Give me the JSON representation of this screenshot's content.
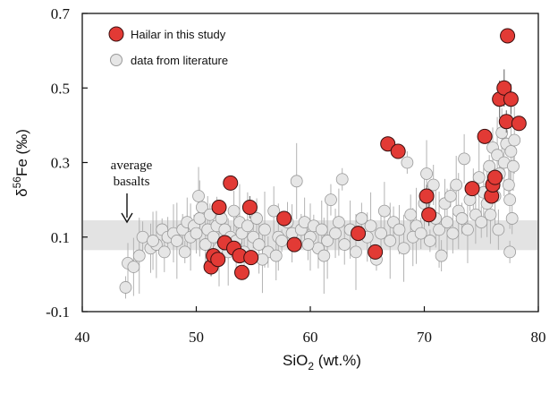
{
  "chart_data": {
    "type": "scatter",
    "title": "",
    "xlabel": {
      "main": "SiO",
      "sub": "2",
      "tail": " (wt.%)"
    },
    "ylabel": {
      "main": "δ",
      "sup": "56",
      "tail": "Fe (‰)"
    },
    "xlim": [
      40,
      80
    ],
    "ylim": [
      -0.1,
      0.7
    ],
    "xticks": [
      "40",
      "50",
      "60",
      "70",
      "80"
    ],
    "yticks": [
      "-0.1",
      "0.1",
      "0.3",
      "0.5",
      "0.7"
    ],
    "xtick_values": [
      40,
      50,
      60,
      70,
      80
    ],
    "ytick_values": [
      -0.1,
      0.1,
      0.3,
      0.5,
      0.7
    ],
    "grid": false,
    "legend_position": "top-left",
    "band": {
      "label_line1": "average",
      "label_line2": "basalts",
      "y_min": 0.065,
      "y_max": 0.145,
      "color": "#e3e3e3"
    },
    "colors": {
      "hailar_fill": "#e23a35",
      "hailar_stroke": "#3a1010",
      "literature_fill": "#e6e6e6",
      "literature_stroke": "#9a9a9a",
      "error_bar": "#b3b3b3",
      "hailar_error": "#777777"
    },
    "series": [
      {
        "name": "Hailar in this study",
        "points": [
          [
            51.3,
            0.02
          ],
          [
            51.5,
            0.05
          ],
          [
            51.9,
            0.04
          ],
          [
            52.0,
            0.18
          ],
          [
            52.5,
            0.085
          ],
          [
            53.0,
            0.245
          ],
          [
            53.3,
            0.07
          ],
          [
            53.8,
            0.05
          ],
          [
            54.0,
            0.005
          ],
          [
            54.7,
            0.18
          ],
          [
            54.8,
            0.045
          ],
          [
            57.7,
            0.15
          ],
          [
            58.6,
            0.08
          ],
          [
            64.2,
            0.11
          ],
          [
            65.7,
            0.06
          ],
          [
            66.8,
            0.35
          ],
          [
            67.7,
            0.33
          ],
          [
            70.2,
            0.21
          ],
          [
            70.4,
            0.16
          ],
          [
            74.2,
            0.23
          ],
          [
            75.3,
            0.37
          ],
          [
            75.9,
            0.21
          ],
          [
            76.0,
            0.24
          ],
          [
            76.2,
            0.26
          ],
          [
            76.6,
            0.47
          ],
          [
            77.0,
            0.5
          ],
          [
            77.2,
            0.41
          ],
          [
            77.3,
            0.64
          ],
          [
            77.6,
            0.47
          ],
          [
            78.3,
            0.405
          ]
        ],
        "errors": [
          0.025,
          0.02,
          0.02,
          0.02,
          0.02,
          0.02,
          0.02,
          0.02,
          0.02,
          0.03,
          0.02,
          0.02,
          0.02,
          0.02,
          0.02,
          0.02,
          0.02,
          0.03,
          0.03,
          0.02,
          0.02,
          0.02,
          0.02,
          0.02,
          0.05,
          0.05,
          0.03,
          0.02,
          0.04,
          0.02
        ]
      },
      {
        "name": "data from literature",
        "points": [
          [
            43.8,
            -0.035
          ],
          [
            44.0,
            0.03
          ],
          [
            44.5,
            0.02
          ],
          [
            45.0,
            0.05
          ],
          [
            45.3,
            0.1
          ],
          [
            46.0,
            0.07
          ],
          [
            46.5,
            0.08
          ],
          [
            47.0,
            0.12
          ],
          [
            47.5,
            0.1
          ],
          [
            48.0,
            0.11
          ],
          [
            48.3,
            0.09
          ],
          [
            48.8,
            0.12
          ],
          [
            49.2,
            0.14
          ],
          [
            49.5,
            0.1
          ],
          [
            49.8,
            0.13
          ],
          [
            50.0,
            0.11
          ],
          [
            50.2,
            0.21
          ],
          [
            50.3,
            0.15
          ],
          [
            50.5,
            0.18
          ],
          [
            50.8,
            0.08
          ],
          [
            51.0,
            0.12
          ],
          [
            51.2,
            0.16
          ],
          [
            51.5,
            0.1
          ],
          [
            51.8,
            0.13
          ],
          [
            52.0,
            0.07
          ],
          [
            52.2,
            0.15
          ],
          [
            52.5,
            0.12
          ],
          [
            52.8,
            0.06
          ],
          [
            53.0,
            0.1
          ],
          [
            53.3,
            0.17
          ],
          [
            53.5,
            0.09
          ],
          [
            53.8,
            0.14
          ],
          [
            54.0,
            0.11
          ],
          [
            54.2,
            0.06
          ],
          [
            54.5,
            0.13
          ],
          [
            55.0,
            0.1
          ],
          [
            55.3,
            0.15
          ],
          [
            55.5,
            0.08
          ],
          [
            56.0,
            0.12
          ],
          [
            56.3,
            0.06
          ],
          [
            56.8,
            0.17
          ],
          [
            57.2,
            0.1
          ],
          [
            57.5,
            0.09
          ],
          [
            58.0,
            0.14
          ],
          [
            58.4,
            0.11
          ],
          [
            58.8,
            0.25
          ],
          [
            59.2,
            0.12
          ],
          [
            59.5,
            0.14
          ],
          [
            60.0,
            0.1
          ],
          [
            60.3,
            0.13
          ],
          [
            60.7,
            0.07
          ],
          [
            61.0,
            0.12
          ],
          [
            61.5,
            0.09
          ],
          [
            61.8,
            0.2
          ],
          [
            62.2,
            0.11
          ],
          [
            62.5,
            0.14
          ],
          [
            62.8,
            0.255
          ],
          [
            63.0,
            0.08
          ],
          [
            63.5,
            0.12
          ],
          [
            64.0,
            0.06
          ],
          [
            64.5,
            0.15
          ],
          [
            65.0,
            0.1
          ],
          [
            65.3,
            0.13
          ],
          [
            65.8,
            0.04
          ],
          [
            66.2,
            0.11
          ],
          [
            66.5,
            0.17
          ],
          [
            67.0,
            0.09
          ],
          [
            67.3,
            0.14
          ],
          [
            67.8,
            0.12
          ],
          [
            68.2,
            0.07
          ],
          [
            68.5,
            0.3
          ],
          [
            68.8,
            0.16
          ],
          [
            69.0,
            0.1
          ],
          [
            69.3,
            0.13
          ],
          [
            69.7,
            0.11
          ],
          [
            70.0,
            0.19
          ],
          [
            70.2,
            0.27
          ],
          [
            70.5,
            0.09
          ],
          [
            70.8,
            0.24
          ],
          [
            71.0,
            0.15
          ],
          [
            71.3,
            0.12
          ],
          [
            71.5,
            0.05
          ],
          [
            71.8,
            0.19
          ],
          [
            72.0,
            0.14
          ],
          [
            72.3,
            0.21
          ],
          [
            72.5,
            0.11
          ],
          [
            72.8,
            0.24
          ],
          [
            73.0,
            0.17
          ],
          [
            73.3,
            0.15
          ],
          [
            73.5,
            0.31
          ],
          [
            73.8,
            0.12
          ],
          [
            74.0,
            0.2
          ],
          [
            74.3,
            0.23
          ],
          [
            74.5,
            0.16
          ],
          [
            74.8,
            0.26
          ],
          [
            75.0,
            0.14
          ],
          [
            75.2,
            0.22
          ],
          [
            75.5,
            0.19
          ],
          [
            75.7,
            0.29
          ],
          [
            76.0,
            0.34
          ],
          [
            76.2,
            0.21
          ],
          [
            76.4,
            0.32
          ],
          [
            76.6,
            0.27
          ],
          [
            76.8,
            0.38
          ],
          [
            77.0,
            0.3
          ],
          [
            77.2,
            0.35
          ],
          [
            77.4,
            0.24
          ],
          [
            77.5,
            0.2
          ],
          [
            77.6,
            0.33
          ],
          [
            77.7,
            0.15
          ],
          [
            77.8,
            0.29
          ],
          [
            77.9,
            0.36
          ],
          [
            77.5,
            0.06
          ],
          [
            76.5,
            0.12
          ],
          [
            75.8,
            0.16
          ],
          [
            61.2,
            0.05
          ],
          [
            59.8,
            0.08
          ],
          [
            57.0,
            0.05
          ],
          [
            55.8,
            0.04
          ],
          [
            49.0,
            0.06
          ],
          [
            47.2,
            0.06
          ],
          [
            46.2,
            0.09
          ]
        ]
      }
    ]
  }
}
